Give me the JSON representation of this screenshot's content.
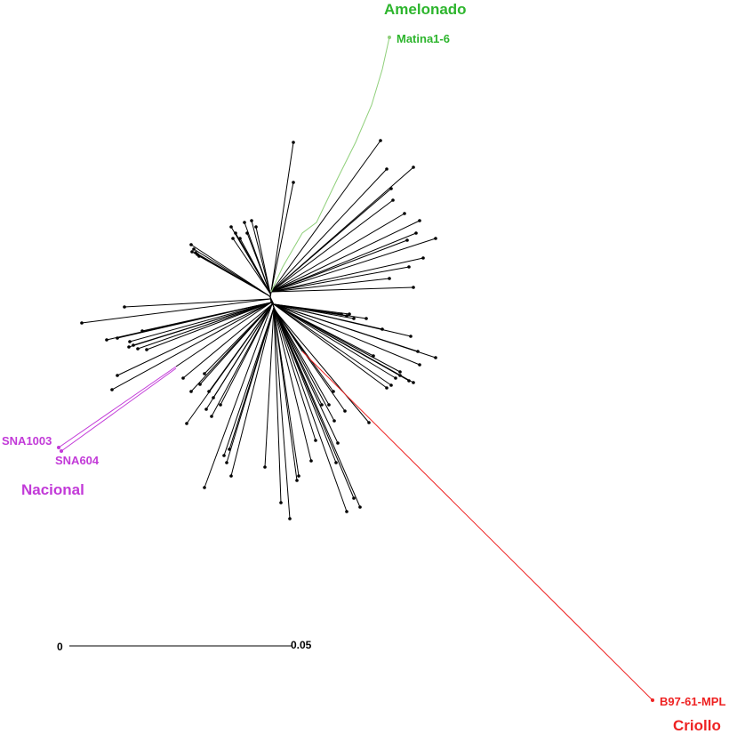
{
  "colors": {
    "tree": "#000000",
    "amelonado": "#2db52d",
    "amelonado_branch": "#8fcf7a",
    "nacional": "#c23ad8",
    "criollo": "#ee2222"
  },
  "groups": {
    "amelonado": {
      "name": "Amelonado",
      "leaf": "Matina1-6"
    },
    "nacional": {
      "name": "Nacional",
      "leaves": [
        "SNA1003",
        "SNA604"
      ]
    },
    "criollo": {
      "name": "Criollo",
      "leaf": "B97-61-MPL"
    }
  },
  "scale_bar": {
    "start_label": "0",
    "end_label": "0.05"
  }
}
